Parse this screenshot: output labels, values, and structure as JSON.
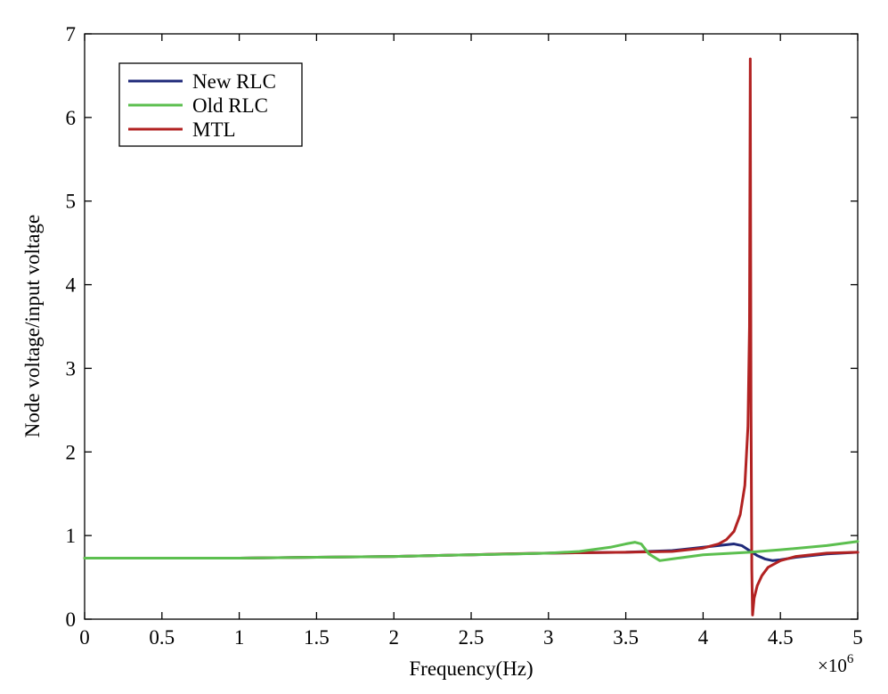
{
  "chart_data": {
    "type": "line",
    "title": "",
    "xlabel": "Frequency(Hz)",
    "ylabel": "Node voltage/input voltage",
    "x_multiplier_label": "×10",
    "x_multiplier_exponent": "6",
    "xlim": [
      0,
      5
    ],
    "ylim": [
      0,
      7
    ],
    "x_ticks": [
      "0",
      "0.5",
      "1",
      "1.5",
      "2",
      "2.5",
      "3",
      "3.5",
      "4",
      "4.5",
      "5"
    ],
    "y_ticks": [
      "0",
      "1",
      "2",
      "3",
      "4",
      "5",
      "6",
      "7"
    ],
    "grid": false,
    "legend_position": "top-left",
    "series": [
      {
        "name": "New RLC",
        "color": "#1f2a7a",
        "x": [
          0,
          0.5,
          1,
          1.5,
          2,
          2.5,
          3,
          3.5,
          3.8,
          4.0,
          4.1,
          4.2,
          4.25,
          4.3,
          4.35,
          4.4,
          4.45,
          4.5,
          4.6,
          4.8,
          5.0
        ],
        "y": [
          0.73,
          0.73,
          0.73,
          0.74,
          0.75,
          0.77,
          0.79,
          0.8,
          0.82,
          0.86,
          0.88,
          0.9,
          0.88,
          0.82,
          0.76,
          0.72,
          0.7,
          0.71,
          0.74,
          0.78,
          0.8
        ]
      },
      {
        "name": "Old RLC",
        "color": "#5cbf4f",
        "x": [
          0,
          0.5,
          1,
          1.5,
          2,
          2.5,
          2.8,
          3.0,
          3.2,
          3.4,
          3.5,
          3.56,
          3.6,
          3.65,
          3.72,
          3.8,
          4.0,
          4.3,
          4.5,
          4.8,
          5.0
        ],
        "y": [
          0.73,
          0.73,
          0.73,
          0.74,
          0.75,
          0.77,
          0.78,
          0.79,
          0.81,
          0.86,
          0.9,
          0.92,
          0.9,
          0.78,
          0.7,
          0.72,
          0.77,
          0.8,
          0.83,
          0.88,
          0.93
        ]
      },
      {
        "name": "MTL",
        "color": "#b22222",
        "x": [
          0,
          0.5,
          1,
          1.5,
          2,
          2.5,
          2.7,
          3.0,
          3.5,
          3.8,
          4.0,
          4.1,
          4.15,
          4.2,
          4.24,
          4.27,
          4.29,
          4.3,
          4.305,
          4.31,
          4.315,
          4.32,
          4.33,
          4.35,
          4.38,
          4.42,
          4.5,
          4.6,
          4.8,
          5.0
        ],
        "y": [
          0.73,
          0.73,
          0.73,
          0.74,
          0.75,
          0.77,
          0.78,
          0.79,
          0.8,
          0.81,
          0.85,
          0.9,
          0.95,
          1.05,
          1.25,
          1.6,
          2.3,
          3.5,
          6.7,
          2.5,
          0.6,
          0.05,
          0.25,
          0.4,
          0.52,
          0.62,
          0.7,
          0.75,
          0.79,
          0.8
        ]
      }
    ]
  }
}
